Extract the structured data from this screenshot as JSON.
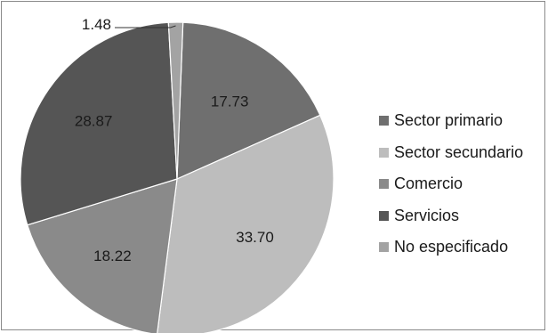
{
  "chart_data": {
    "type": "pie",
    "title": "",
    "slices": [
      {
        "name": "Sector primario",
        "value": 17.73,
        "label": "17.73",
        "color": "#6f6f6f"
      },
      {
        "name": "Sector secundario",
        "value": 33.7,
        "label": "33.70",
        "color": "#bdbdbd"
      },
      {
        "name": "Comercio",
        "value": 18.22,
        "label": "18.22",
        "color": "#8a8a8a"
      },
      {
        "name": "Servicios",
        "value": 28.87,
        "label": "28.87",
        "color": "#555555"
      },
      {
        "name": "No especificado",
        "value": 1.48,
        "label": "1.48",
        "color": "#a3a3a3"
      }
    ],
    "legend_position": "right"
  }
}
